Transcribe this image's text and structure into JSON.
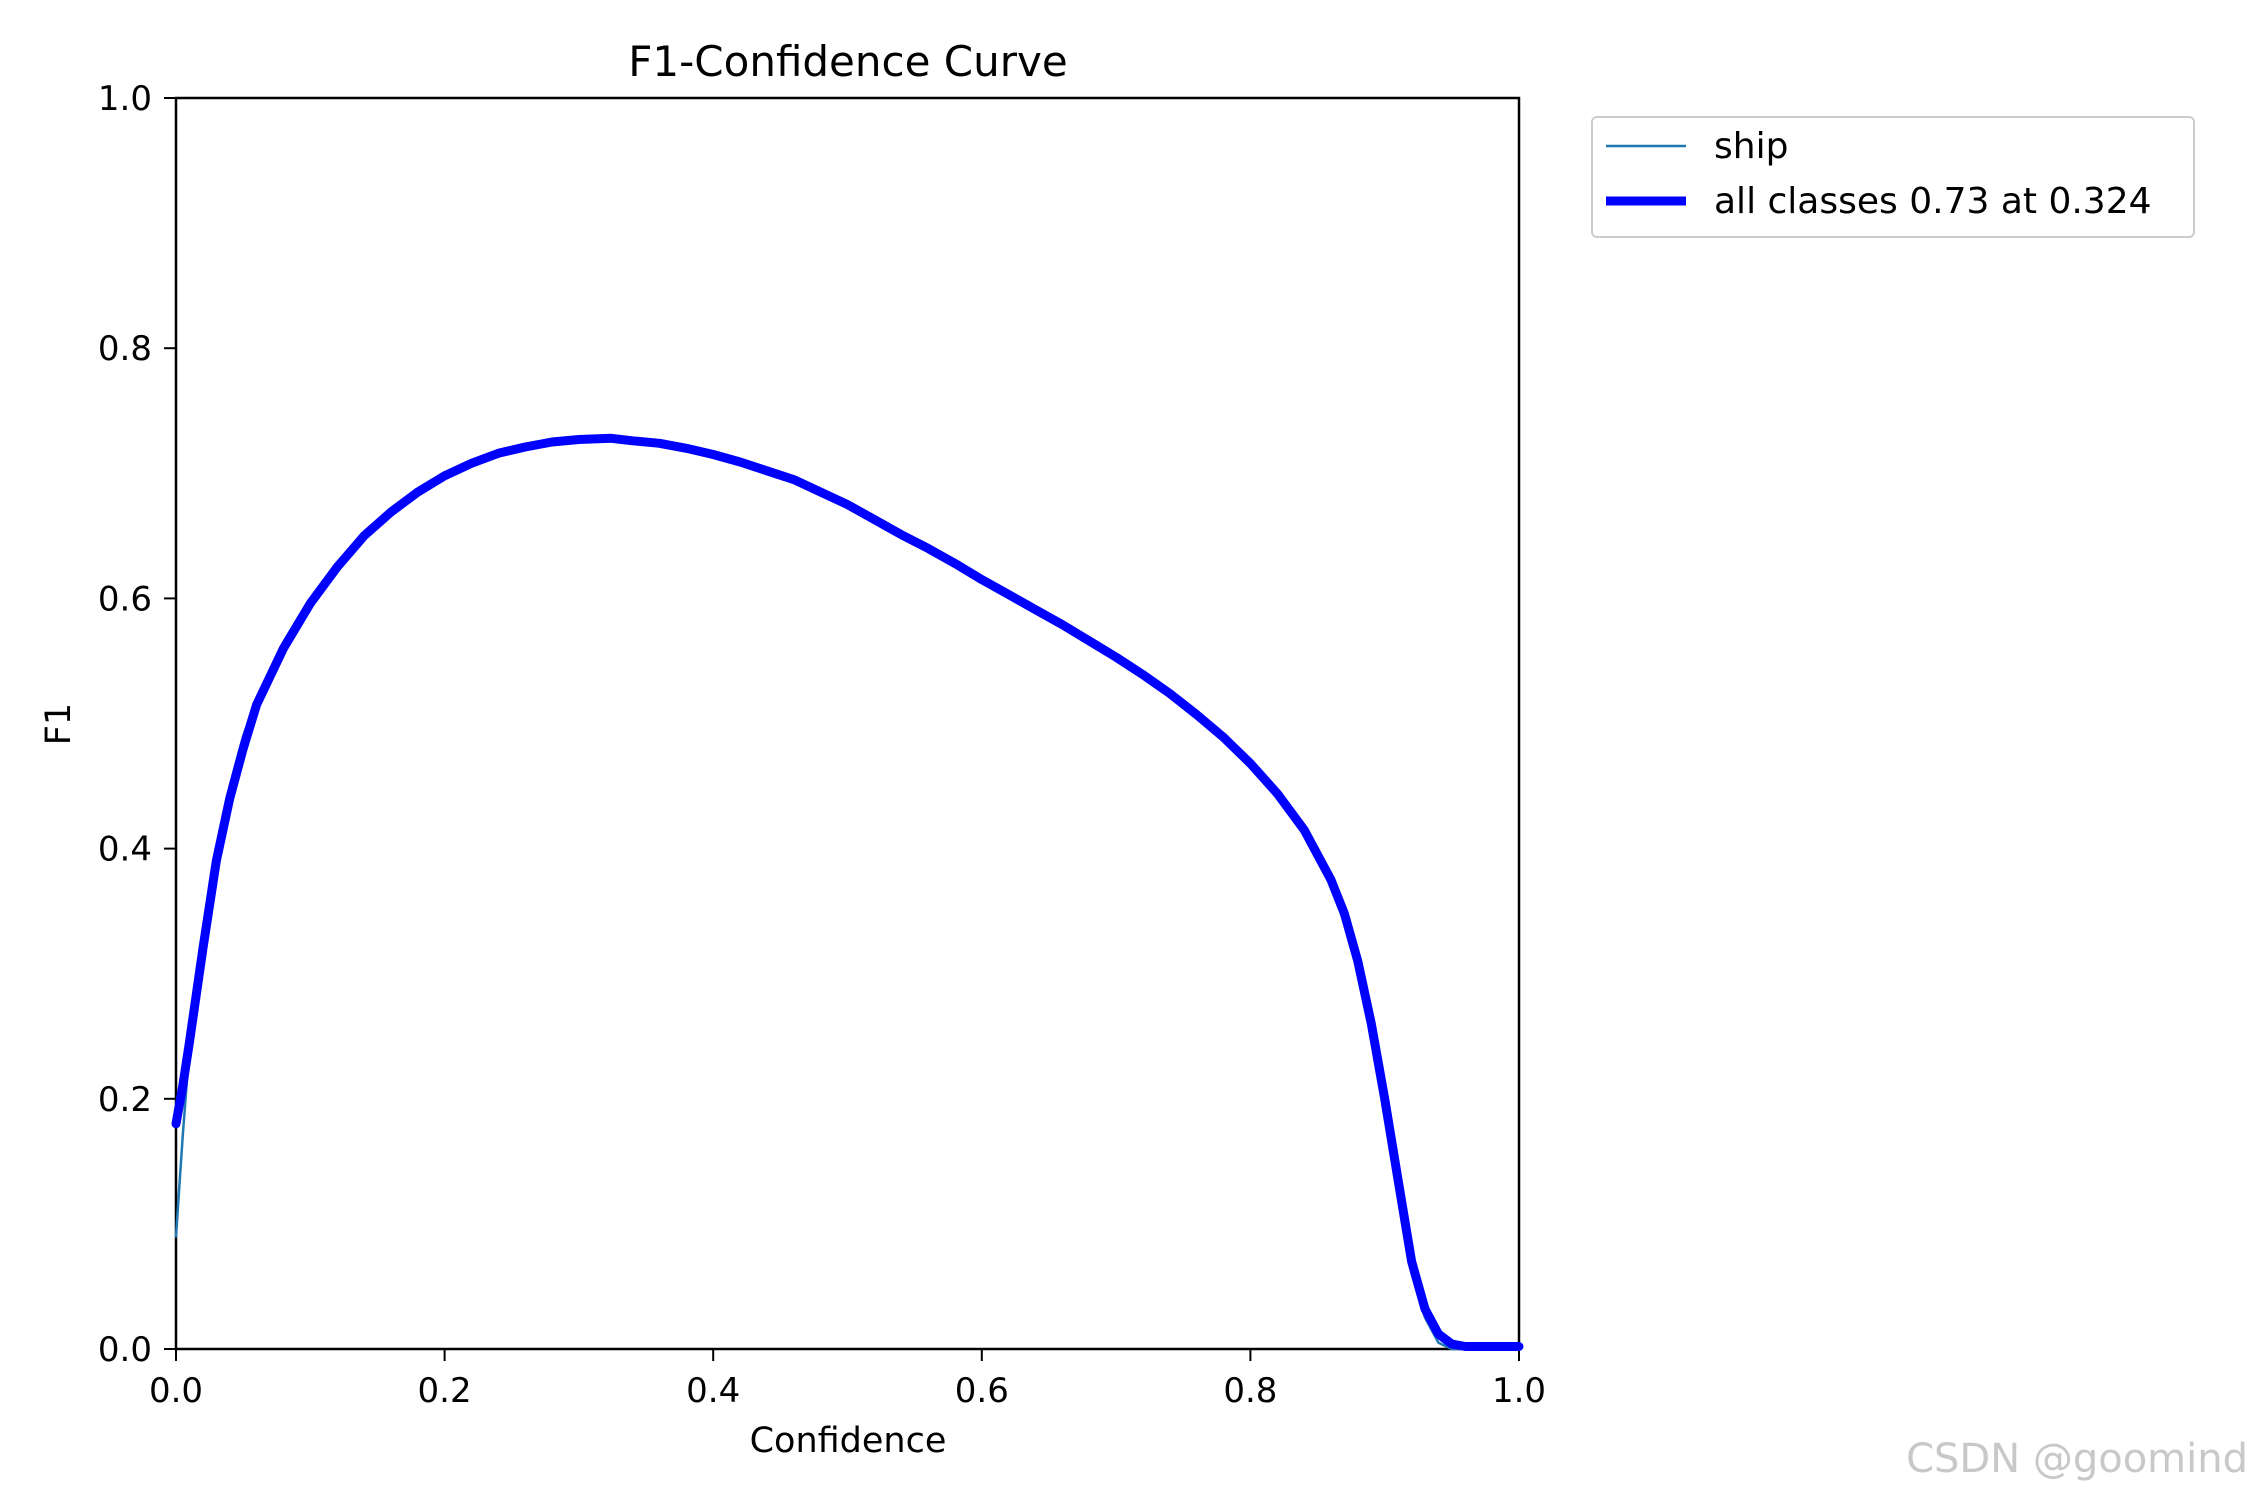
{
  "chart_data": {
    "type": "line",
    "title": "F1-Confidence Curve",
    "xlabel": "Confidence",
    "ylabel": "F1",
    "xlim": [
      0,
      1
    ],
    "ylim": [
      0,
      1
    ],
    "xticks": [
      "0.0",
      "0.2",
      "0.4",
      "0.6",
      "0.8",
      "1.0"
    ],
    "yticks": [
      "0.0",
      "0.2",
      "0.4",
      "0.6",
      "0.8",
      "1.0"
    ],
    "legend_position": "outside top-right",
    "series": [
      {
        "name": "ship",
        "color": "#1f77b4",
        "x": [
          0.0,
          0.005,
          0.01,
          0.02,
          0.03,
          0.04,
          0.05,
          0.06,
          0.08,
          0.1,
          0.12,
          0.14,
          0.16,
          0.18,
          0.2,
          0.22,
          0.24,
          0.26,
          0.28,
          0.3,
          0.324,
          0.34,
          0.36,
          0.38,
          0.4,
          0.42,
          0.44,
          0.46,
          0.48,
          0.5,
          0.52,
          0.54,
          0.56,
          0.58,
          0.6,
          0.62,
          0.64,
          0.66,
          0.68,
          0.7,
          0.72,
          0.74,
          0.76,
          0.78,
          0.8,
          0.82,
          0.84,
          0.86,
          0.87,
          0.88,
          0.89,
          0.9,
          0.91,
          0.92,
          0.93,
          0.94,
          0.95,
          0.96,
          0.97,
          1.0
        ],
        "values": [
          0.09,
          0.17,
          0.24,
          0.33,
          0.4,
          0.45,
          0.49,
          0.52,
          0.565,
          0.6,
          0.628,
          0.652,
          0.671,
          0.687,
          0.7,
          0.71,
          0.717,
          0.722,
          0.725,
          0.727,
          0.728,
          0.726,
          0.724,
          0.72,
          0.715,
          0.709,
          0.702,
          0.695,
          0.685,
          0.675,
          0.663,
          0.651,
          0.64,
          0.628,
          0.615,
          0.603,
          0.591,
          0.579,
          0.566,
          0.553,
          0.539,
          0.524,
          0.507,
          0.489,
          0.468,
          0.444,
          0.415,
          0.375,
          0.348,
          0.31,
          0.26,
          0.2,
          0.13,
          0.06,
          0.025,
          0.005,
          0.0,
          0.0,
          0.0,
          0.0
        ]
      },
      {
        "name": "all classes 0.73 at 0.324",
        "color": "#0000ff",
        "x": [
          0.0,
          0.005,
          0.01,
          0.02,
          0.03,
          0.04,
          0.05,
          0.06,
          0.08,
          0.1,
          0.12,
          0.14,
          0.16,
          0.18,
          0.2,
          0.22,
          0.24,
          0.26,
          0.28,
          0.3,
          0.324,
          0.34,
          0.36,
          0.38,
          0.4,
          0.42,
          0.44,
          0.46,
          0.48,
          0.5,
          0.52,
          0.54,
          0.56,
          0.58,
          0.6,
          0.62,
          0.64,
          0.66,
          0.68,
          0.7,
          0.72,
          0.74,
          0.76,
          0.78,
          0.8,
          0.82,
          0.84,
          0.86,
          0.87,
          0.88,
          0.89,
          0.9,
          0.91,
          0.92,
          0.93,
          0.94,
          0.95,
          0.96,
          0.97,
          1.0
        ],
        "values": [
          0.18,
          0.21,
          0.245,
          0.32,
          0.39,
          0.44,
          0.48,
          0.515,
          0.56,
          0.596,
          0.625,
          0.65,
          0.669,
          0.685,
          0.698,
          0.708,
          0.716,
          0.721,
          0.725,
          0.727,
          0.728,
          0.726,
          0.724,
          0.72,
          0.715,
          0.709,
          0.702,
          0.695,
          0.685,
          0.675,
          0.663,
          0.651,
          0.64,
          0.628,
          0.615,
          0.603,
          0.591,
          0.579,
          0.566,
          0.553,
          0.539,
          0.524,
          0.507,
          0.489,
          0.468,
          0.444,
          0.415,
          0.375,
          0.348,
          0.31,
          0.26,
          0.2,
          0.135,
          0.07,
          0.032,
          0.012,
          0.004,
          0.002,
          0.002,
          0.002
        ]
      }
    ]
  },
  "watermark": "CSDN @goomind"
}
